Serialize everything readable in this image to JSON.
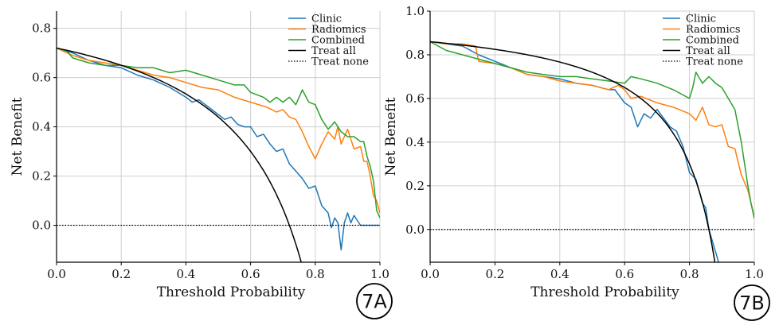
{
  "chart_data": [
    {
      "type": "line",
      "panel_label": "7A",
      "xlabel": "Threshold Probability",
      "ylabel": "Net Benefit",
      "xlim": [
        0.0,
        1.0
      ],
      "ylim": [
        -0.15,
        0.87
      ],
      "xticks": [
        0.0,
        0.2,
        0.4,
        0.6,
        0.8,
        1.0
      ],
      "yticks": [
        0.0,
        0.2,
        0.4,
        0.6,
        0.8
      ],
      "xtick_labels": [
        "0.0",
        "0.2",
        "0.4",
        "0.6",
        "0.8",
        "1.0"
      ],
      "ytick_labels": [
        "0.0",
        "0.2",
        "0.4",
        "0.6",
        "0.8"
      ],
      "grid": true,
      "legend_position": "top-right",
      "series": [
        {
          "name": "Clinic",
          "color": "#1f77b4",
          "style": "solid",
          "x": [
            0.0,
            0.05,
            0.1,
            0.15,
            0.2,
            0.25,
            0.3,
            0.35,
            0.4,
            0.42,
            0.44,
            0.46,
            0.48,
            0.5,
            0.52,
            0.54,
            0.56,
            0.58,
            0.6,
            0.62,
            0.64,
            0.66,
            0.68,
            0.7,
            0.72,
            0.74,
            0.76,
            0.78,
            0.8,
            0.82,
            0.84,
            0.85,
            0.86,
            0.87,
            0.88,
            0.89,
            0.9,
            0.91,
            0.92,
            0.94,
            0.96,
            0.98,
            1.0
          ],
          "y": [
            0.72,
            0.7,
            0.67,
            0.65,
            0.64,
            0.61,
            0.59,
            0.56,
            0.52,
            0.5,
            0.51,
            0.49,
            0.47,
            0.45,
            0.43,
            0.44,
            0.41,
            0.4,
            0.4,
            0.36,
            0.37,
            0.33,
            0.3,
            0.31,
            0.25,
            0.22,
            0.19,
            0.15,
            0.16,
            0.08,
            0.05,
            -0.01,
            0.03,
            0.01,
            -0.1,
            0.01,
            0.05,
            0.01,
            0.04,
            0.0,
            0.0,
            0.0,
            0.0
          ]
        },
        {
          "name": "Radiomics",
          "color": "#ff7f0e",
          "style": "solid",
          "x": [
            0.0,
            0.05,
            0.1,
            0.15,
            0.2,
            0.25,
            0.3,
            0.35,
            0.4,
            0.45,
            0.5,
            0.55,
            0.6,
            0.65,
            0.68,
            0.7,
            0.72,
            0.74,
            0.76,
            0.78,
            0.8,
            0.82,
            0.84,
            0.86,
            0.87,
            0.88,
            0.9,
            0.92,
            0.94,
            0.95,
            0.96,
            0.97,
            0.98,
            0.99,
            1.0
          ],
          "y": [
            0.72,
            0.69,
            0.67,
            0.66,
            0.65,
            0.63,
            0.61,
            0.6,
            0.58,
            0.56,
            0.55,
            0.52,
            0.5,
            0.48,
            0.46,
            0.47,
            0.44,
            0.43,
            0.38,
            0.32,
            0.27,
            0.33,
            0.38,
            0.35,
            0.4,
            0.33,
            0.39,
            0.31,
            0.32,
            0.26,
            0.26,
            0.2,
            0.12,
            0.1,
            0.05
          ]
        },
        {
          "name": "Combined",
          "color": "#2ca02c",
          "style": "solid",
          "x": [
            0.0,
            0.03,
            0.05,
            0.1,
            0.15,
            0.2,
            0.25,
            0.3,
            0.35,
            0.4,
            0.45,
            0.5,
            0.55,
            0.58,
            0.6,
            0.62,
            0.64,
            0.66,
            0.68,
            0.7,
            0.72,
            0.74,
            0.76,
            0.78,
            0.8,
            0.82,
            0.84,
            0.86,
            0.88,
            0.9,
            0.92,
            0.94,
            0.95,
            0.96,
            0.97,
            0.98,
            0.99,
            1.0
          ],
          "y": [
            0.72,
            0.71,
            0.68,
            0.66,
            0.65,
            0.65,
            0.64,
            0.64,
            0.62,
            0.63,
            0.61,
            0.59,
            0.57,
            0.57,
            0.54,
            0.53,
            0.52,
            0.5,
            0.52,
            0.5,
            0.52,
            0.49,
            0.55,
            0.5,
            0.49,
            0.43,
            0.39,
            0.42,
            0.38,
            0.36,
            0.36,
            0.34,
            0.34,
            0.28,
            0.24,
            0.18,
            0.06,
            0.03
          ]
        },
        {
          "name": "Treat all",
          "color": "#000000",
          "style": "solid",
          "formula": "treat_all",
          "prevalence": 0.72
        },
        {
          "name": "Treat none",
          "color": "#000000",
          "style": "dotted",
          "x": [
            0.0,
            1.0
          ],
          "y": [
            0.0,
            0.0
          ]
        }
      ]
    },
    {
      "type": "line",
      "panel_label": "7B",
      "xlabel": "Threshold Probability",
      "ylabel": "Net Benefit",
      "xlim": [
        0.0,
        1.0
      ],
      "ylim": [
        -0.15,
        1.0
      ],
      "xticks": [
        0.0,
        0.2,
        0.4,
        0.6,
        0.8,
        1.0
      ],
      "yticks": [
        0.0,
        0.2,
        0.4,
        0.6,
        0.8,
        1.0
      ],
      "xtick_labels": [
        "0.0",
        "0.2",
        "0.4",
        "0.6",
        "0.8",
        "1.0"
      ],
      "ytick_labels": [
        "0.0",
        "0.2",
        "0.4",
        "0.6",
        "0.8",
        "1.0"
      ],
      "grid": true,
      "legend_position": "top-right",
      "series": [
        {
          "name": "Clinic",
          "color": "#1f77b4",
          "style": "solid",
          "x": [
            0.0,
            0.05,
            0.1,
            0.15,
            0.2,
            0.25,
            0.3,
            0.35,
            0.4,
            0.45,
            0.5,
            0.55,
            0.57,
            0.6,
            0.62,
            0.64,
            0.66,
            0.68,
            0.7,
            0.72,
            0.74,
            0.76,
            0.78,
            0.8,
            0.82,
            0.84,
            0.85,
            0.86,
            0.88,
            0.89
          ],
          "y": [
            0.86,
            0.85,
            0.84,
            0.8,
            0.77,
            0.74,
            0.71,
            0.7,
            0.69,
            0.67,
            0.66,
            0.64,
            0.64,
            0.58,
            0.56,
            0.47,
            0.53,
            0.51,
            0.55,
            0.51,
            0.47,
            0.45,
            0.38,
            0.26,
            0.23,
            0.12,
            0.1,
            0.0,
            -0.1,
            -0.15
          ]
        },
        {
          "name": "Radiomics",
          "color": "#ff7f0e",
          "style": "solid",
          "x": [
            0.0,
            0.05,
            0.1,
            0.14,
            0.15,
            0.2,
            0.25,
            0.3,
            0.35,
            0.4,
            0.45,
            0.5,
            0.55,
            0.58,
            0.6,
            0.62,
            0.65,
            0.7,
            0.75,
            0.8,
            0.82,
            0.84,
            0.86,
            0.88,
            0.9,
            0.92,
            0.94,
            0.96,
            0.98,
            0.99,
            1.0
          ],
          "y": [
            0.86,
            0.85,
            0.85,
            0.84,
            0.77,
            0.76,
            0.74,
            0.71,
            0.7,
            0.68,
            0.67,
            0.66,
            0.64,
            0.66,
            0.64,
            0.6,
            0.61,
            0.58,
            0.56,
            0.53,
            0.5,
            0.56,
            0.48,
            0.47,
            0.48,
            0.38,
            0.37,
            0.25,
            0.18,
            0.12,
            0.06
          ]
        },
        {
          "name": "Combined",
          "color": "#2ca02c",
          "style": "solid",
          "x": [
            0.0,
            0.05,
            0.1,
            0.15,
            0.2,
            0.25,
            0.3,
            0.35,
            0.4,
            0.45,
            0.5,
            0.55,
            0.6,
            0.62,
            0.65,
            0.7,
            0.75,
            0.8,
            0.81,
            0.82,
            0.84,
            0.86,
            0.88,
            0.9,
            0.92,
            0.94,
            0.96,
            0.97,
            0.98,
            0.99,
            1.0
          ],
          "y": [
            0.86,
            0.82,
            0.8,
            0.78,
            0.76,
            0.74,
            0.72,
            0.71,
            0.7,
            0.7,
            0.69,
            0.68,
            0.67,
            0.7,
            0.69,
            0.67,
            0.64,
            0.6,
            0.65,
            0.72,
            0.67,
            0.7,
            0.67,
            0.65,
            0.6,
            0.55,
            0.4,
            0.3,
            0.2,
            0.12,
            0.05
          ]
        },
        {
          "name": "Treat all",
          "color": "#000000",
          "style": "solid",
          "formula": "treat_all",
          "prevalence": 0.86
        },
        {
          "name": "Treat none",
          "color": "#000000",
          "style": "dotted",
          "x": [
            0.0,
            1.0
          ],
          "y": [
            0.0,
            0.0
          ]
        }
      ]
    }
  ]
}
